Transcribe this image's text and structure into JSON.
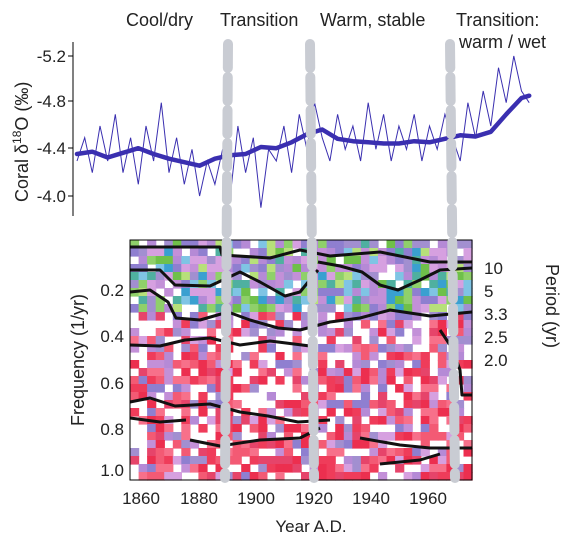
{
  "chart_data": [
    {
      "type": "line",
      "ylabel_main": "Coral δ",
      "ylabel_super": "18",
      "ylabel_tail": "O (‰)",
      "yticks": [
        "-5.2",
        "-4.8",
        "-4.4",
        "-4.0"
      ],
      "ylim": [
        -3.85,
        -5.3
      ],
      "xlim": [
        1856,
        1975
      ],
      "y_inverted": true,
      "series": [
        {
          "role": "raw",
          "color": "#3a2fb0",
          "x": [
            1856,
            1858,
            1860,
            1862,
            1864,
            1866,
            1868,
            1870,
            1872,
            1874,
            1876,
            1878,
            1880,
            1882,
            1884,
            1886,
            1888,
            1890,
            1892,
            1894,
            1896,
            1898,
            1900,
            1902,
            1904,
            1906,
            1908,
            1910,
            1912,
            1914,
            1916,
            1918,
            1920,
            1922,
            1924,
            1926,
            1928,
            1930,
            1932,
            1934,
            1936,
            1938,
            1940,
            1942,
            1944,
            1946,
            1948,
            1950,
            1952,
            1954,
            1956,
            1958,
            1960,
            1962,
            1964,
            1966,
            1968,
            1970,
            1972,
            1974
          ],
          "values": [
            -4.3,
            -4.5,
            -4.2,
            -4.6,
            -4.3,
            -4.7,
            -4.2,
            -4.5,
            -4.1,
            -4.6,
            -4.3,
            -4.8,
            -4.2,
            -4.5,
            -4.1,
            -4.4,
            -4.0,
            -4.3,
            -4.1,
            -4.4,
            -4.0,
            -4.6,
            -4.2,
            -4.5,
            -3.9,
            -4.4,
            -4.3,
            -4.6,
            -4.2,
            -4.7,
            -4.4,
            -4.8,
            -4.5,
            -4.3,
            -4.7,
            -4.4,
            -4.6,
            -4.3,
            -4.8,
            -4.4,
            -4.7,
            -4.3,
            -4.6,
            -4.4,
            -4.7,
            -4.3,
            -4.6,
            -4.4,
            -4.7,
            -4.5,
            -4.3,
            -4.8,
            -4.5,
            -4.9,
            -4.6,
            -5.1,
            -4.8,
            -5.2,
            -4.9,
            -4.8
          ]
        },
        {
          "role": "smoothed",
          "color": "#3a2fb0",
          "x": [
            1856,
            1860,
            1864,
            1868,
            1872,
            1876,
            1880,
            1884,
            1888,
            1892,
            1896,
            1900,
            1904,
            1908,
            1912,
            1916,
            1920,
            1924,
            1928,
            1932,
            1936,
            1940,
            1944,
            1948,
            1952,
            1956,
            1960,
            1964,
            1968,
            1972,
            1974
          ],
          "values": [
            -4.36,
            -4.38,
            -4.33,
            -4.37,
            -4.41,
            -4.36,
            -4.32,
            -4.29,
            -4.26,
            -4.32,
            -4.35,
            -4.36,
            -4.42,
            -4.41,
            -4.46,
            -4.53,
            -4.57,
            -4.49,
            -4.47,
            -4.46,
            -4.45,
            -4.45,
            -4.47,
            -4.46,
            -4.49,
            -4.52,
            -4.51,
            -4.55,
            -4.7,
            -4.84,
            -4.86
          ]
        }
      ]
    },
    {
      "type": "heatmap",
      "xlabel": "Year A.D.",
      "ylabel": "Frequency (1/yr)",
      "y2label": "Period (yr)",
      "xticks": [
        "1860",
        "1880",
        "1900",
        "1920",
        "1940",
        "1960"
      ],
      "xtick_values": [
        1860,
        1880,
        1900,
        1920,
        1940,
        1960
      ],
      "yticks": [
        "0.2",
        "0.4",
        "0.6",
        "0.8",
        "1.0"
      ],
      "ytick_values": [
        0.2,
        0.4,
        0.6,
        0.8,
        1.0
      ],
      "y2ticks": [
        "10",
        "5",
        "3.3",
        "2.5",
        "2.0"
      ],
      "y2tick_values": [
        0.1,
        0.2,
        0.3,
        0.4,
        0.5
      ],
      "xlim": [
        1855,
        1975
      ],
      "ylim": [
        0.0,
        1.03
      ]
    }
  ],
  "annotations": {
    "phases": [
      "Cool/dry",
      "Transition",
      "Warm, stable",
      "Transition:",
      "warm / wet"
    ],
    "dividers": [
      1890,
      1920,
      1967
    ]
  },
  "colors": {
    "line": "#3a2fb0",
    "divider": "#c9ccd3",
    "contour": "#111111"
  }
}
